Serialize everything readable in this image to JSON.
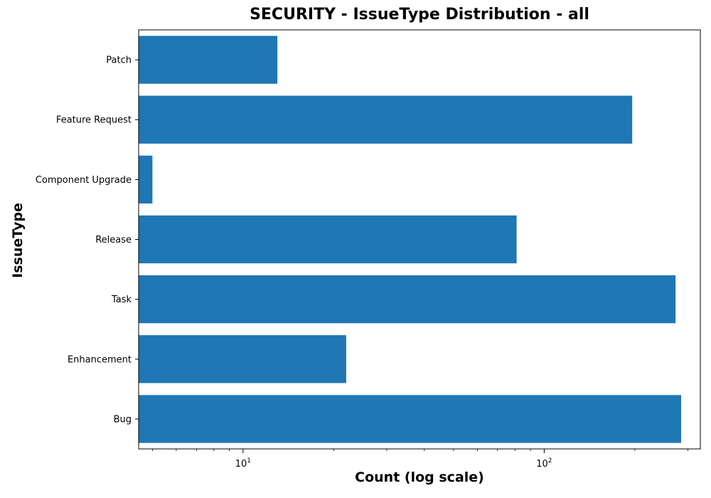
{
  "chart_data": {
    "type": "bar",
    "orientation": "horizontal",
    "title": "SECURITY - IssueType Distribution - all",
    "xlabel": "Count (log scale)",
    "ylabel": "IssueType",
    "x_scale": "log",
    "xlim": [
      4.5,
      330
    ],
    "categories": [
      "Patch",
      "Feature Request",
      "Component Upgrade",
      "Release",
      "Task",
      "Enhancement",
      "Bug"
    ],
    "values": [
      13,
      196,
      5,
      81,
      273,
      22,
      285
    ],
    "x_ticks": [
      {
        "value": 10,
        "base": "10",
        "exp": "1"
      },
      {
        "value": 100,
        "base": "10",
        "exp": "2"
      }
    ],
    "bar_color": "#1f77b4",
    "grid": false,
    "legend": "none"
  }
}
